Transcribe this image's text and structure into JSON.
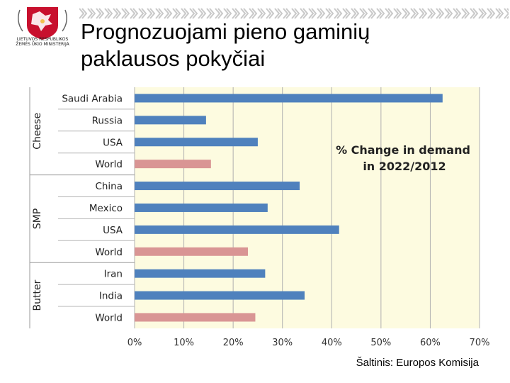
{
  "header": {
    "title_line1": "Prognozuojami pieno gaminių",
    "title_line2": "paklausos pokyčiai",
    "logo_caption_line1": "LIETUVOS RESPUBLIKOS",
    "logo_caption_line2": "ŽEMĖS ŪKIO MINISTERIJA"
  },
  "footer": {
    "source": "Šaltinis: Europos Komisija"
  },
  "colors": {
    "highlight": "#d99594",
    "series": "#4f81bd",
    "plot_background": "#fdfbe0"
  },
  "chart_data": {
    "type": "bar",
    "orientation": "horizontal",
    "annotation_line1": "% Change in demand",
    "annotation_line2": "in 2022/2012",
    "groups": [
      {
        "name": "Cheese",
        "categories": [
          "Saudi Arabia",
          "Russia",
          "USA",
          "World"
        ],
        "values": [
          62.5,
          14.5,
          25.0,
          15.5
        ]
      },
      {
        "name": "SMP",
        "categories": [
          "China",
          "Mexico",
          "USA",
          "World"
        ],
        "values": [
          33.5,
          27.0,
          41.5,
          23.0
        ]
      },
      {
        "name": "Butter",
        "categories": [
          "Iran",
          "India",
          "World"
        ],
        "values": [
          26.5,
          34.5,
          24.5
        ]
      }
    ],
    "highlight_category": "World",
    "xlim": [
      0,
      70
    ],
    "xticks": [
      0,
      10,
      20,
      30,
      40,
      50,
      60,
      70
    ],
    "xtick_labels": [
      "0%",
      "10%",
      "20%",
      "30%",
      "40%",
      "50%",
      "60%",
      "70%"
    ],
    "grid": "vertical",
    "xlabel": "",
    "ylabel": ""
  }
}
